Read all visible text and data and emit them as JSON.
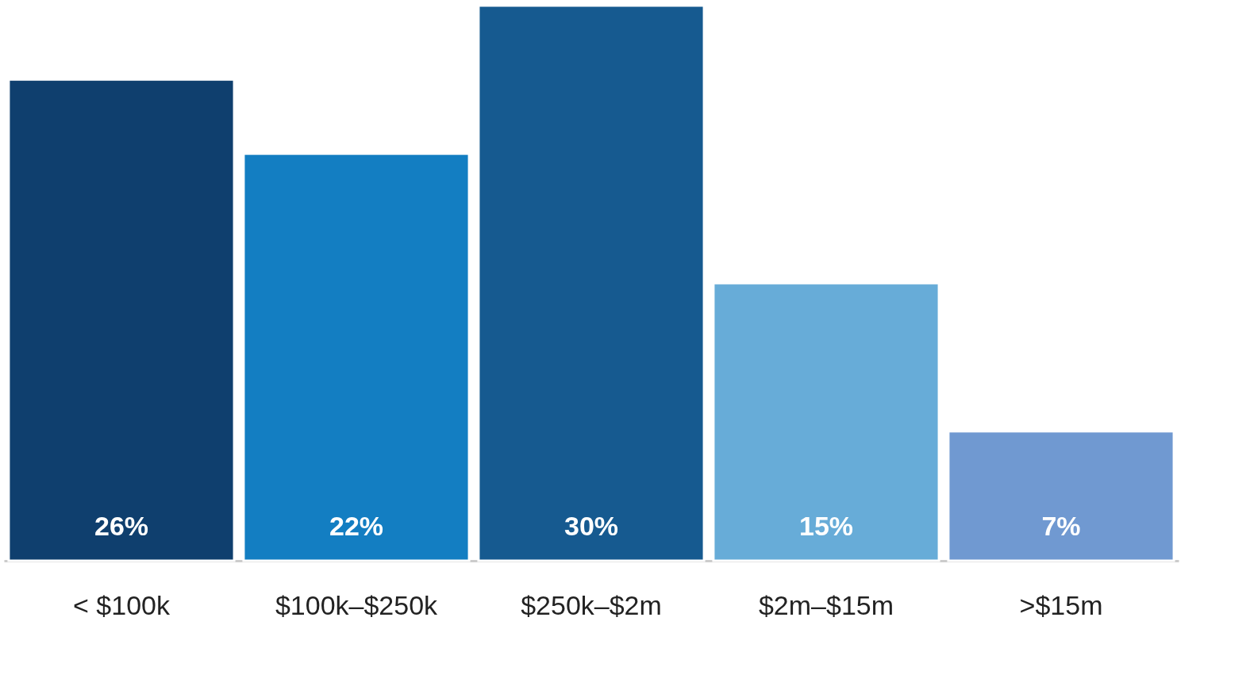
{
  "chart_data": {
    "type": "bar",
    "categories": [
      "< $100k",
      "$100k–$250k",
      "$250k–$2m",
      "$2m–$15m",
      ">$15m"
    ],
    "values": [
      26,
      22,
      30,
      15,
      7
    ],
    "colors": [
      "#0f3f6e",
      "#137ec2",
      "#165a90",
      "#67acd8",
      "#7099d1"
    ],
    "data_labels": true,
    "value_labels": [
      "26%",
      "22%",
      "30%",
      "15%",
      "7%"
    ],
    "tick_labels": "x",
    "grid": false
  }
}
